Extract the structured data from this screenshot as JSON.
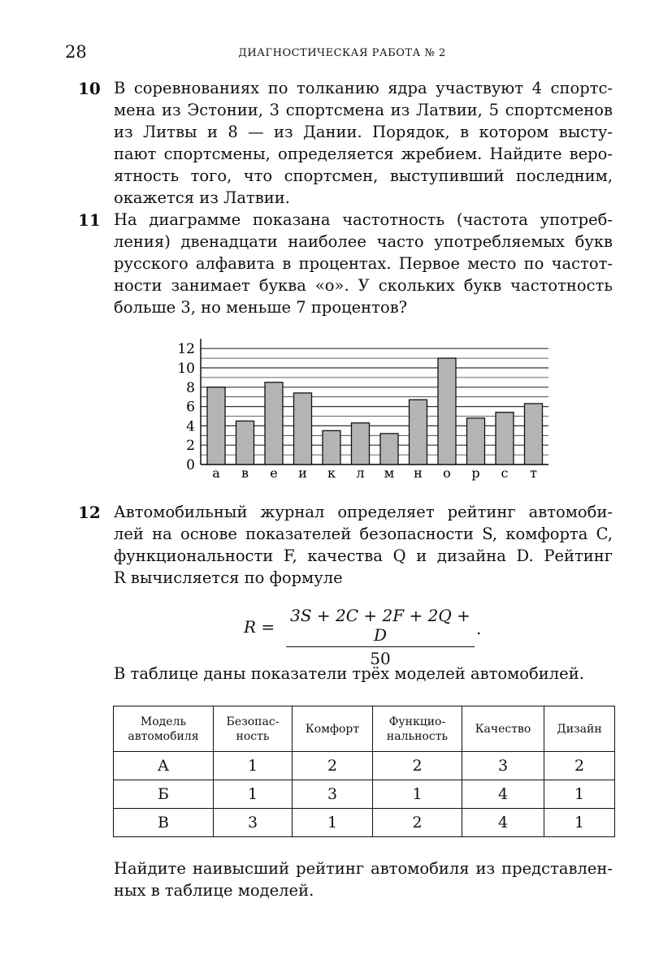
{
  "header": {
    "page_number": "28",
    "running_title": "ДИАГНОСТИЧЕСКАЯ РАБОТА № 2"
  },
  "problems": [
    {
      "number": "10",
      "lines": [
        "В соревнованиях по толканию ядра участвуют 4 спортс-",
        "мена из Эстонии, 3 спортсмена из Латвии, 5 спортсменов",
        "из Литвы и 8 — из Дании. Порядок, в котором высту-",
        "пают спортсмены, определяется жребием. Найдите веро-",
        "ятность того, что спортсмен, выступивший последним,",
        "окажется из Латвии."
      ]
    },
    {
      "number": "11",
      "lines": [
        "На диаграмме показана частотность (частота употреб-",
        "ления) двенадцати наиболее часто употребляемых букв",
        "русского алфавита в процентах. Первое место по частот-",
        "ности занимает буква «о». У скольких букв частотность",
        "больше 3, но меньше 7 процентов?"
      ]
    },
    {
      "number": "12",
      "lines": [
        "Автомобильный журнал определяет рейтинг автомоби-",
        "лей на основе показателей безопасности S, комфорта C,",
        "функциональности F, качества Q и дизайна D. Рейтинг",
        "R вычисляется по формуле"
      ],
      "formula": {
        "lhs": "R =",
        "numerator": "3S + 2C + 2F + 2Q + D",
        "denominator": "50",
        "tail": "."
      },
      "table_intro": "В таблице даны показатели трёх моделей автомобилей.",
      "table": {
        "headers": [
          [
            "Модель",
            "автомобиля"
          ],
          [
            "Безопас-",
            "ность"
          ],
          [
            "Комфорт"
          ],
          [
            "Функцио-",
            "нальность"
          ],
          [
            "Качество"
          ],
          [
            "Дизайн"
          ]
        ],
        "rows": [
          [
            "А",
            "1",
            "2",
            "2",
            "3",
            "2"
          ],
          [
            "Б",
            "1",
            "3",
            "1",
            "4",
            "1"
          ],
          [
            "В",
            "3",
            "1",
            "2",
            "4",
            "1"
          ]
        ]
      },
      "question_lines": [
        "Найдите наивысший рейтинг автомобиля из представлен-",
        "ных в таблице моделей."
      ]
    }
  ],
  "chart_data": {
    "type": "bar",
    "categories": [
      "а",
      "в",
      "е",
      "и",
      "к",
      "л",
      "м",
      "н",
      "о",
      "р",
      "с",
      "т"
    ],
    "values": [
      8.0,
      4.5,
      8.5,
      7.4,
      3.5,
      4.3,
      3.2,
      6.7,
      11.0,
      4.8,
      5.4,
      6.3
    ],
    "ylim": [
      0,
      12
    ],
    "yticks": [
      "0",
      "2",
      "4",
      "6",
      "8",
      "10",
      "12"
    ],
    "grid": true,
    "bar_color": "#b4b4b4"
  }
}
